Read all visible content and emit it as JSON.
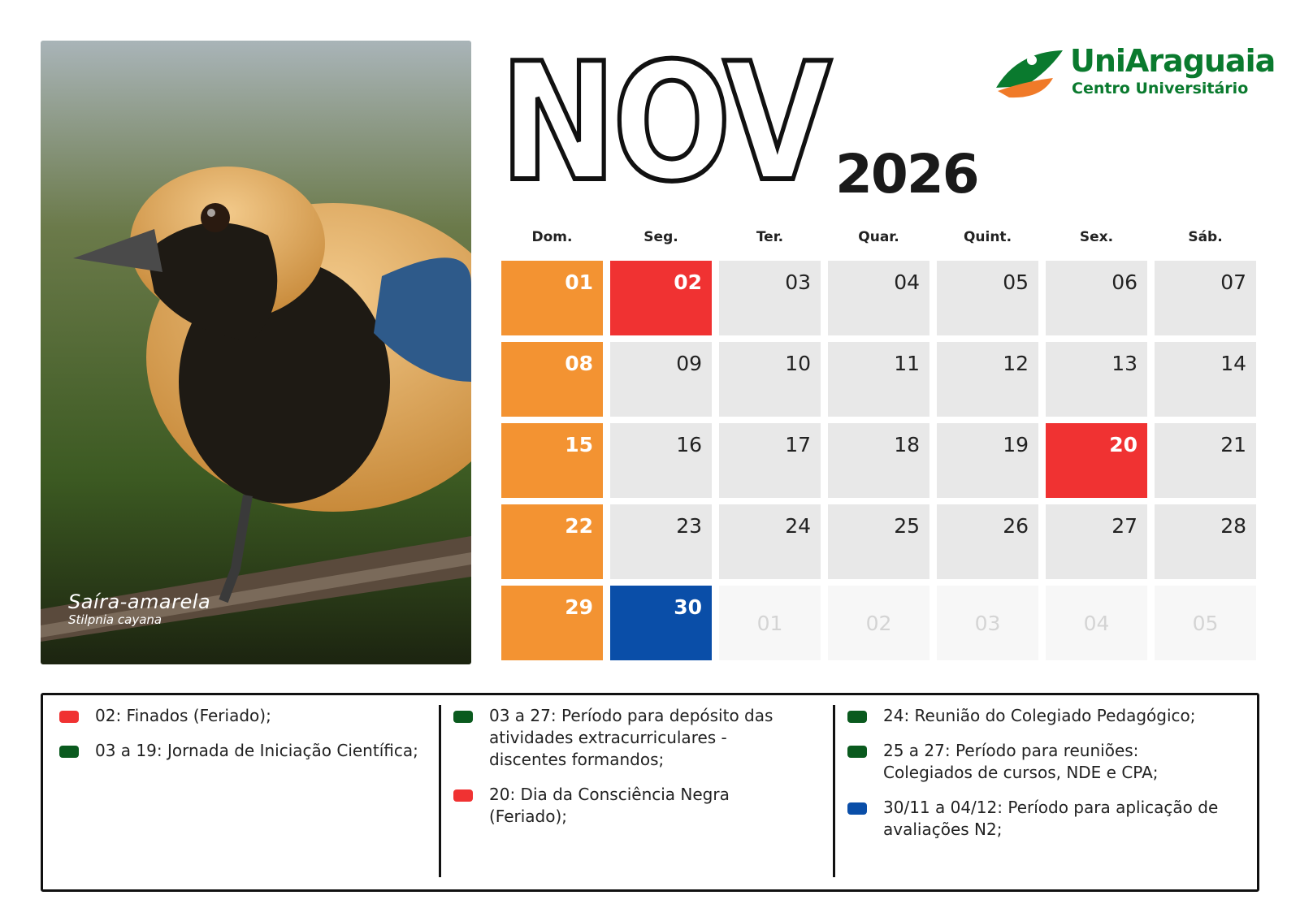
{
  "header": {
    "month": "NOV",
    "year": "2026",
    "brand": "UniAraguaia",
    "brand_subtitle": "Centro Universitário"
  },
  "photo": {
    "common_name": "Saíra-amarela",
    "scientific_name": "Stilpnia cayana"
  },
  "calendar": {
    "weekdays": [
      "Dom.",
      "Seg.",
      "Ter.",
      "Quar.",
      "Quint.",
      "Sex.",
      "Sáb."
    ],
    "weeks": [
      [
        {
          "label": "01",
          "fill": "#f39332",
          "text_color": "#ffffff"
        },
        {
          "label": "02",
          "fill": "#f03232",
          "text_color": "#ffffff"
        },
        {
          "label": "03",
          "fill": "#e8e8e8",
          "text_color": "#222222"
        },
        {
          "label": "04",
          "fill": "#e8e8e8",
          "text_color": "#222222"
        },
        {
          "label": "05",
          "fill": "#e8e8e8",
          "text_color": "#222222"
        },
        {
          "label": "06",
          "fill": "#e8e8e8",
          "text_color": "#222222"
        },
        {
          "label": "07",
          "fill": "#e8e8e8",
          "text_color": "#222222"
        }
      ],
      [
        {
          "label": "08",
          "fill": "#f39332",
          "text_color": "#ffffff"
        },
        {
          "label": "09",
          "fill": "#e8e8e8",
          "text_color": "#222222"
        },
        {
          "label": "10",
          "fill": "#e8e8e8",
          "text_color": "#222222"
        },
        {
          "label": "11",
          "fill": "#e8e8e8",
          "text_color": "#222222"
        },
        {
          "label": "12",
          "fill": "#e8e8e8",
          "text_color": "#222222"
        },
        {
          "label": "13",
          "fill": "#e8e8e8",
          "text_color": "#222222"
        },
        {
          "label": "14",
          "fill": "#e8e8e8",
          "text_color": "#222222"
        }
      ],
      [
        {
          "label": "15",
          "fill": "#f39332",
          "text_color": "#ffffff"
        },
        {
          "label": "16",
          "fill": "#e8e8e8",
          "text_color": "#222222"
        },
        {
          "label": "17",
          "fill": "#e8e8e8",
          "text_color": "#222222"
        },
        {
          "label": "18",
          "fill": "#e8e8e8",
          "text_color": "#222222"
        },
        {
          "label": "19",
          "fill": "#e8e8e8",
          "text_color": "#222222"
        },
        {
          "label": "20",
          "fill": "#f03232",
          "text_color": "#ffffff"
        },
        {
          "label": "21",
          "fill": "#e8e8e8",
          "text_color": "#222222"
        }
      ],
      [
        {
          "label": "22",
          "fill": "#f39332",
          "text_color": "#ffffff"
        },
        {
          "label": "23",
          "fill": "#e8e8e8",
          "text_color": "#222222"
        },
        {
          "label": "24",
          "fill": "#e8e8e8",
          "text_color": "#222222"
        },
        {
          "label": "25",
          "fill": "#e8e8e8",
          "text_color": "#222222"
        },
        {
          "label": "26",
          "fill": "#e8e8e8",
          "text_color": "#222222"
        },
        {
          "label": "27",
          "fill": "#e8e8e8",
          "text_color": "#222222"
        },
        {
          "label": "28",
          "fill": "#e8e8e8",
          "text_color": "#222222"
        }
      ],
      [
        {
          "label": "29",
          "fill": "#f39332",
          "text_color": "#ffffff"
        },
        {
          "label": "30",
          "fill": "#0a4ea8",
          "text_color": "#ffffff"
        },
        {
          "label": "01",
          "fill": "#f7f7f7",
          "text_color": "#d4d4d4",
          "outside": true
        },
        {
          "label": "02",
          "fill": "#f7f7f7",
          "text_color": "#d4d4d4",
          "outside": true
        },
        {
          "label": "03",
          "fill": "#f7f7f7",
          "text_color": "#d4d4d4",
          "outside": true
        },
        {
          "label": "04",
          "fill": "#f7f7f7",
          "text_color": "#d4d4d4",
          "outside": true
        },
        {
          "label": "05",
          "fill": "#f7f7f7",
          "text_color": "#d4d4d4",
          "outside": true
        }
      ]
    ]
  },
  "notes": [
    [
      {
        "color": "#f03232",
        "text": "02: Finados (Feriado);"
      },
      {
        "color": "#0a5a1e",
        "text": "03 a 19: Jornada de Iniciação Científica;"
      }
    ],
    [
      {
        "color": "#0a5a1e",
        "text": "03 a 27: Período para depósito das atividades extracurriculares - discentes formandos;"
      },
      {
        "color": "#f03232",
        "text": "20: Dia da Consciência Negra (Feriado);"
      }
    ],
    [
      {
        "color": "#0a5a1e",
        "text": "24: Reunião do Colegiado Pedagógico;"
      },
      {
        "color": "#0a5a1e",
        "text": "25 a 27: Período para reuniões: Colegiados de cursos, NDE e CPA;"
      },
      {
        "color": "#0a4ea8",
        "text": "30/11 a 04/12: Período para aplicação de avaliações N2;"
      }
    ]
  ]
}
